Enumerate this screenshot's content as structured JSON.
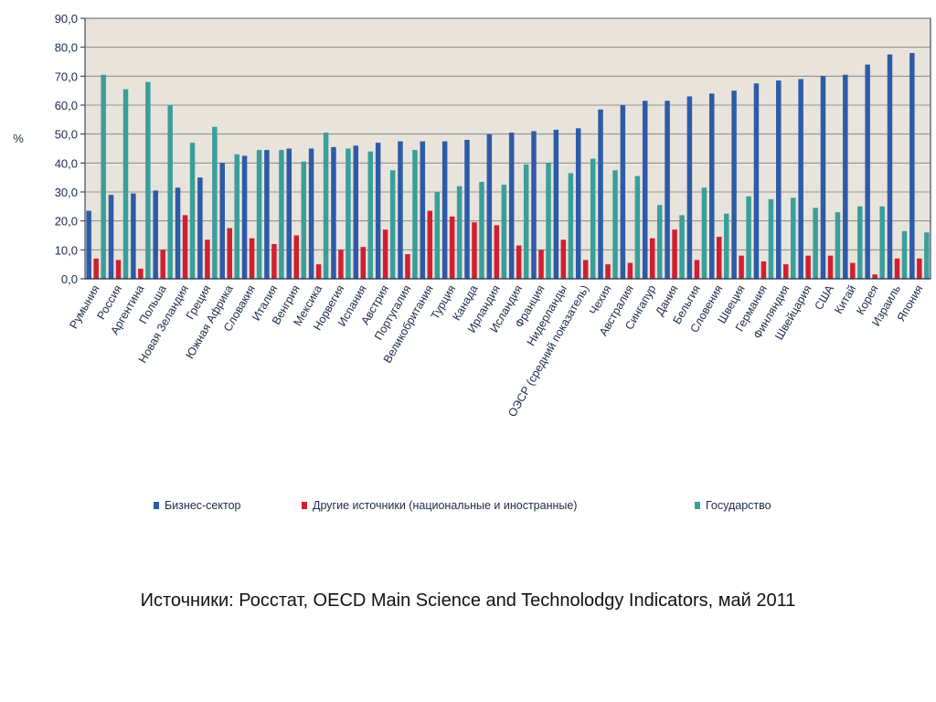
{
  "chart_data": {
    "type": "bar",
    "ylabel": "%",
    "ylim": [
      0,
      90
    ],
    "yticks": [
      "0,0",
      "10,0",
      "20,0",
      "30,0",
      "40,0",
      "50,0",
      "60,0",
      "70,0",
      "80,0",
      "90,0"
    ],
    "grid": true,
    "legend_position": "bottom",
    "categories": [
      "Румыния",
      "Россия",
      "Аргентина",
      "Польша",
      "Новая Зеландия",
      "Греция",
      "Южная Африка",
      "Словакия",
      "Италия",
      "Венгрия",
      "Мексика",
      "Норвегия",
      "Испания",
      "Австрия",
      "Португалия",
      "Великобритания",
      "Турция",
      "Канада",
      "Ирландия",
      "Исландия",
      "Франция",
      "Нидерланды",
      "ОЭСР (средний показатель)",
      "Чехия",
      "Австралия",
      "Сингапур",
      "Дания",
      "Бельгия",
      "Словения",
      "Швеция",
      "Германия",
      "Финляндия",
      "Швейцария",
      "США",
      "Китай",
      "Корея",
      "Израиль",
      "Япония"
    ],
    "series": [
      {
        "name": "Бизнес-сектор",
        "color": "#2e5ba8",
        "values": [
          23.5,
          29,
          29.5,
          30.5,
          31.5,
          35,
          40,
          42.5,
          44.5,
          45,
          45,
          45.5,
          46,
          47,
          47.5,
          47.5,
          47.5,
          48,
          50,
          50.5,
          51,
          51.5,
          52,
          58.5,
          60,
          61.5,
          61.5,
          63,
          64,
          65,
          67.5,
          68.5,
          69,
          70,
          70.5,
          74,
          77.5,
          78
        ]
      },
      {
        "name": "Другие источники (национальные и иностранные)",
        "color": "#d02030",
        "values": [
          7,
          6.5,
          3.5,
          10,
          22,
          13.5,
          17.5,
          14,
          12,
          15,
          5,
          10,
          11,
          17,
          8.5,
          23.5,
          21.5,
          19.5,
          18.5,
          11.5,
          10,
          13.5,
          6.5,
          5,
          5.5,
          14,
          17,
          6.5,
          14.5,
          8,
          6,
          5,
          8,
          8,
          5.5,
          1.5,
          7,
          7
        ]
      },
      {
        "name": "Государство",
        "color": "#3a9f9a",
        "values": [
          70.5,
          65.5,
          68,
          60,
          47,
          52.5,
          43,
          44.5,
          44.5,
          40.5,
          50.5,
          45,
          44,
          37.5,
          44.5,
          30,
          32,
          33.5,
          32.5,
          39.5,
          40,
          36.5,
          41.5,
          37.5,
          35.5,
          25.5,
          22,
          31.5,
          22.5,
          28.5,
          27.5,
          28,
          24.5,
          23,
          25,
          25,
          16.5,
          16
        ]
      }
    ]
  },
  "source_note": "Источники: Росстат, OECD Main Science and Technolodgy Indicators, май 2011"
}
